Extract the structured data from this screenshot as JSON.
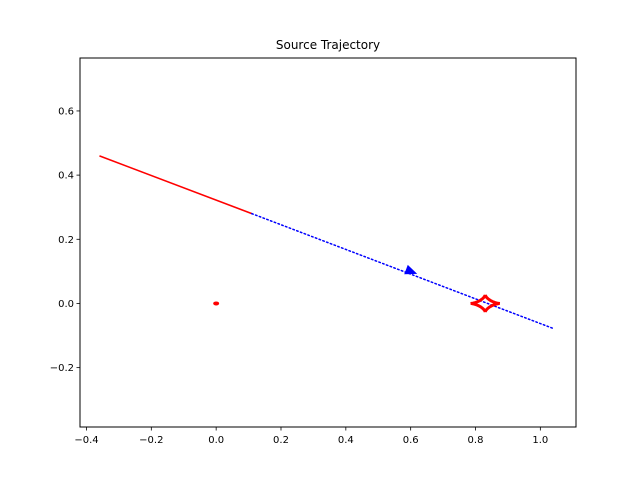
{
  "chart_data": {
    "type": "line",
    "title": "Source Trajectory",
    "xlabel": "",
    "ylabel": "",
    "xlim": [
      -0.42,
      1.11
    ],
    "ylim": [
      -0.385,
      0.765
    ],
    "xticks": [
      -0.4,
      -0.2,
      0.0,
      0.2,
      0.4,
      0.6,
      0.8,
      1.0
    ],
    "xtick_labels": [
      "−0.4",
      "−0.2",
      "0.0",
      "0.2",
      "0.4",
      "0.6",
      "0.8",
      "1.0"
    ],
    "yticks": [
      -0.2,
      0.0,
      0.2,
      0.4,
      0.6
    ],
    "ytick_labels": [
      "−0.2",
      "0.0",
      "0.2",
      "0.4",
      "0.6"
    ],
    "grid": false,
    "series": [
      {
        "style": "solid",
        "color": "#ff0000",
        "x": [
          -0.36,
          0.11
        ],
        "y": [
          0.46,
          0.28
        ]
      },
      {
        "style": "dotted",
        "color": "#0000ff",
        "x": [
          0.11,
          1.04
        ],
        "y": [
          0.28,
          -0.078
        ]
      }
    ],
    "arrow": {
      "color": "#0000ff",
      "x": 0.6,
      "y": 0.1
    },
    "lens": {
      "color": "#ff0000",
      "x": 0.83,
      "y": 0.0,
      "half_width": 0.045,
      "half_height": 0.027
    },
    "point": {
      "color": "#ff0000",
      "x": 0.0,
      "y": 0.0
    }
  }
}
